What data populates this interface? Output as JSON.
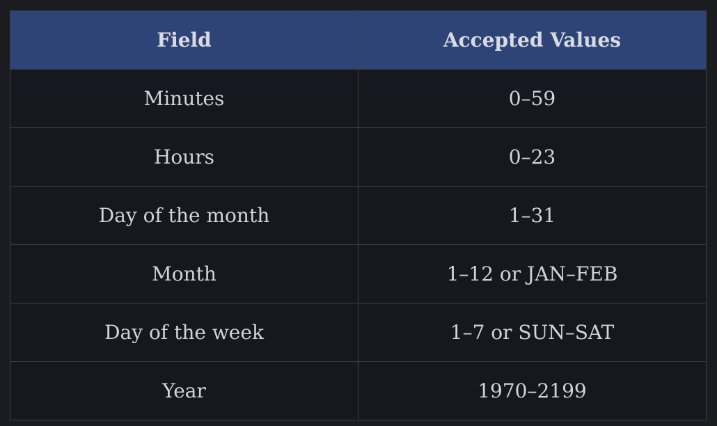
{
  "table": {
    "headers": [
      "Field",
      "Accepted Values"
    ],
    "rows": [
      [
        "Minutes",
        "0–59"
      ],
      [
        "Hours",
        "0–23"
      ],
      [
        "Day of the month",
        "1–31"
      ],
      [
        "Month",
        "1–12 or JAN–FEB"
      ],
      [
        "Day of the week",
        "1–7 or SUN–SAT"
      ],
      [
        "Year",
        "1970–2199"
      ]
    ]
  },
  "colors": {
    "header_bg": "#2f4476",
    "cell_bg": "#17181f",
    "page_bg": "#1b1c20",
    "border": "#3e4046",
    "text": "#d3d4d8"
  }
}
